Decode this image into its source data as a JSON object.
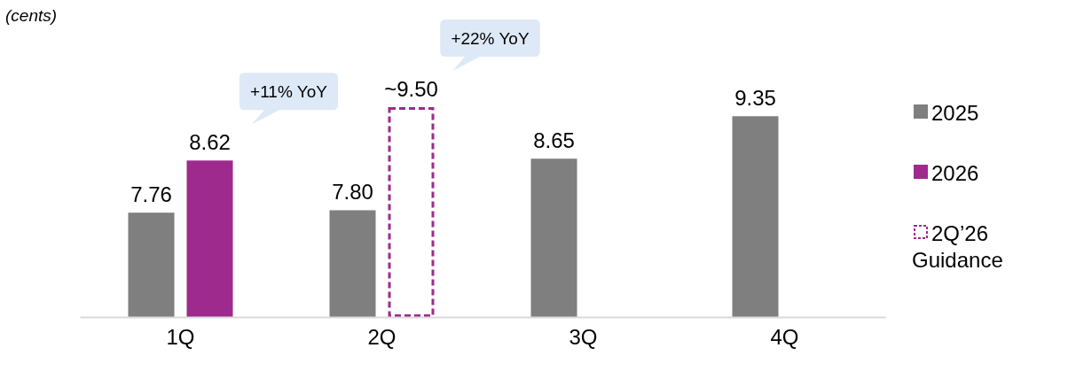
{
  "chart_data": {
    "type": "bar",
    "categories": [
      "1Q",
      "2Q",
      "3Q",
      "4Q"
    ],
    "ylim": [
      6.04,
      9.5
    ],
    "tick_labels": "x",
    "legend": "right",
    "series": [
      {
        "name": "2025",
        "color": "#7f7f7f",
        "values": [
          7.76,
          7.8,
          8.65,
          9.35
        ],
        "value_labels": [
          "7.76",
          "7.80",
          "8.65",
          "9.35"
        ]
      },
      {
        "name": "2026",
        "color": "#9e2a8e",
        "values": [
          8.62,
          null,
          null,
          null
        ],
        "value_labels": [
          "8.62",
          null,
          null,
          null
        ]
      },
      {
        "name": "2Q’26 Guidance",
        "color": "#9e2a8e",
        "line_style": "dashed",
        "values": [
          null,
          9.5,
          null,
          null
        ],
        "value_labels": [
          null,
          "~9.50",
          null,
          null
        ]
      }
    ],
    "annotations": [
      "(cents)",
      "+11% YoY",
      "+22% YoY"
    ]
  }
}
